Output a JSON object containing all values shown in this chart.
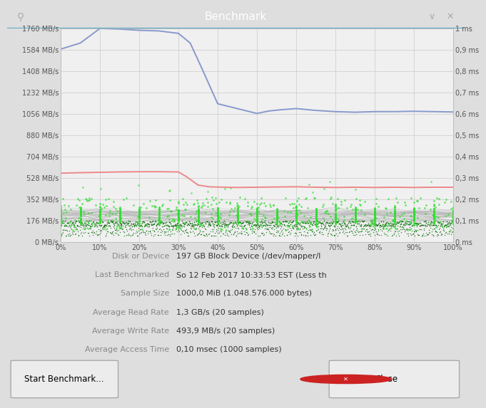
{
  "title": "Benchmark",
  "titlebar_color": "#3c4a52",
  "bg_color": "#dedede",
  "plot_bg_color": "#f0f0f0",
  "fig_width": 6.4,
  "fig_height": 5.58,
  "ylim_left": [
    0,
    1760
  ],
  "ylim_right": [
    0,
    1.0
  ],
  "yticks_left": [
    0,
    176,
    352,
    528,
    704,
    880,
    1056,
    1232,
    1408,
    1584,
    1760
  ],
  "ytick_labels_left": [
    "0 MB/s",
    "176 MB/s",
    "352 MB/s",
    "528 MB/s",
    "704 MB/s",
    "880 MB/s",
    "1056 MB/s",
    "1232 MB/s",
    "1408 MB/s",
    "1584 MB/s",
    "1760 MB/s"
  ],
  "yticks_right": [
    0,
    0.1,
    0.2,
    0.3,
    0.4,
    0.5,
    0.6,
    0.7,
    0.8,
    0.9,
    1.0
  ],
  "ytick_labels_right": [
    "0 ms",
    "0,1 ms",
    "0,2 ms",
    "0,3 ms",
    "0,4 ms",
    "0,5 ms",
    "0,6 ms",
    "0,7 ms",
    "0,8 ms",
    "0,9 ms",
    "1 ms"
  ],
  "xticks": [
    0,
    10,
    20,
    30,
    40,
    50,
    60,
    70,
    80,
    90,
    100
  ],
  "xtick_labels": [
    "0%",
    "10%",
    "20%",
    "30%",
    "40%",
    "50%",
    "60%",
    "70%",
    "80%",
    "90%",
    "100%"
  ],
  "read_line_x": [
    0,
    5,
    10,
    15,
    20,
    25,
    30,
    33,
    36,
    40,
    45,
    50,
    53,
    56,
    60,
    65,
    70,
    75,
    80,
    85,
    90,
    95,
    100
  ],
  "read_line_y": [
    1590,
    1640,
    1760,
    1755,
    1745,
    1740,
    1720,
    1640,
    1430,
    1140,
    1100,
    1060,
    1080,
    1090,
    1100,
    1085,
    1075,
    1070,
    1075,
    1075,
    1078,
    1075,
    1072
  ],
  "write_line_x": [
    0,
    5,
    10,
    15,
    20,
    25,
    30,
    32,
    35,
    38,
    42,
    45,
    50,
    55,
    60,
    65,
    70,
    75,
    80,
    85,
    90,
    95,
    100
  ],
  "write_line_y": [
    568,
    572,
    575,
    578,
    580,
    580,
    578,
    540,
    470,
    455,
    452,
    450,
    452,
    454,
    456,
    452,
    450,
    452,
    450,
    452,
    450,
    452,
    452
  ],
  "read_color": "#8899cc",
  "write_color": "#ee8888",
  "access_color": "#33dd33",
  "dark_green": "#006600",
  "grid_color": "#d0d0d0",
  "info_lines": [
    [
      "Disk or Device",
      "197 GB Block Device (/dev/mapper/l"
    ],
    [
      "Last Benchmarked",
      "So 12 Feb 2017 10:33:53 EST (Less th"
    ],
    [
      "Sample Size",
      "1000,0 MiB (1.048.576.000 bytes)"
    ],
    [
      "Average Read Rate",
      "1,3 GB/s (20 samples)"
    ],
    [
      "Average Write Rate",
      "493,9 MB/s (20 samples)"
    ],
    [
      "Average Access Time",
      "0,10 msec (1000 samples)"
    ]
  ],
  "button_start": "Start Benchmark...",
  "button_close": "Close",
  "label_color": "#888888",
  "value_color": "#333333"
}
